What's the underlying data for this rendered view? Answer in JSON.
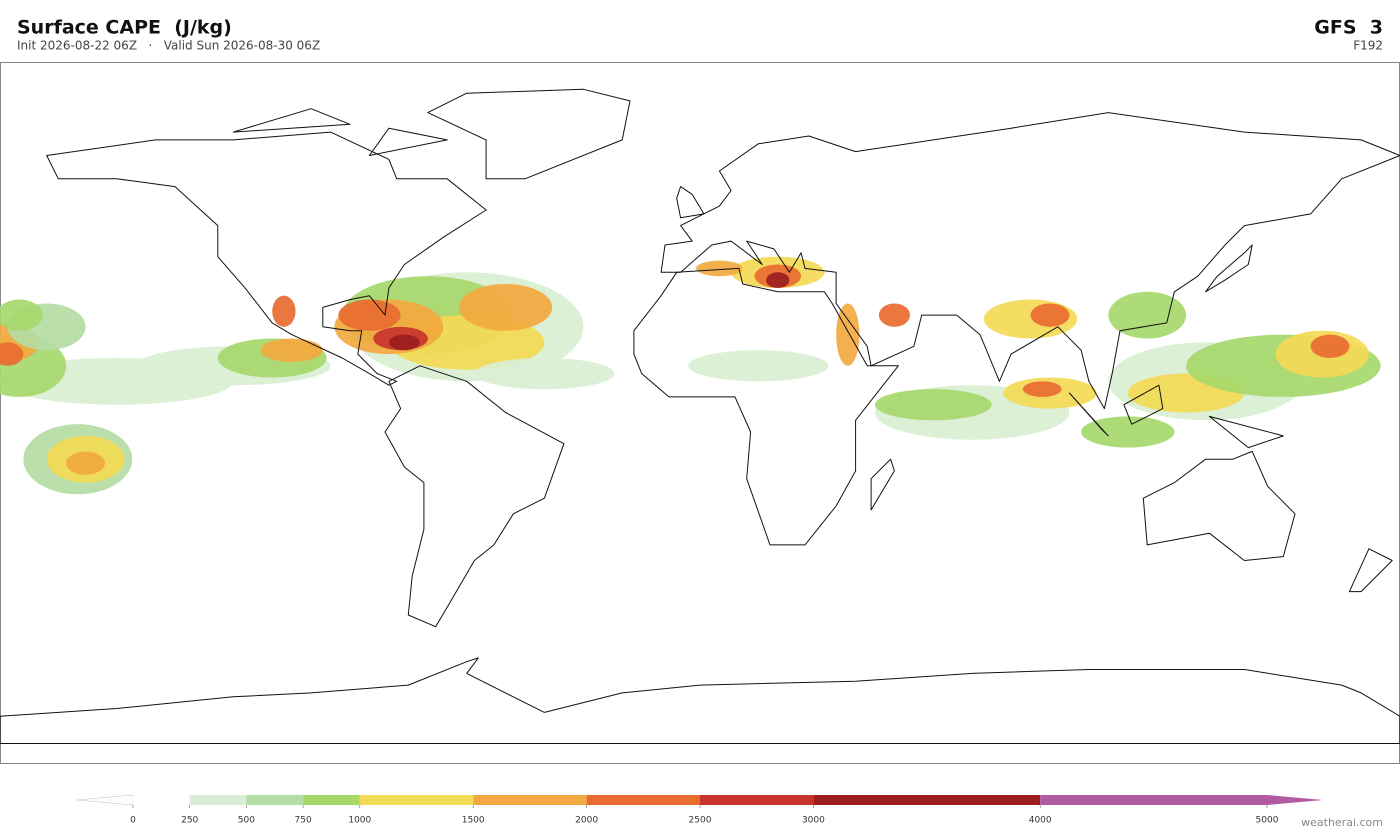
{
  "header": {
    "title": "Surface CAPE  (J/kg)",
    "subtitle": "Init 2026-08-22 06Z   ·   Valid Sun 2026-08-30 06Z",
    "model": "GFS  3",
    "forecast_hour": "F192"
  },
  "colorbar": {
    "ticks": [
      0,
      250,
      500,
      750,
      1000,
      1500,
      2000,
      2500,
      3000,
      4000,
      5000
    ],
    "colors": [
      "#ffffff",
      "#d9efd3",
      "#b4dca3",
      "#a6d86b",
      "#f3da55",
      "#f2a93f",
      "#e86b30",
      "#c8332b",
      "#9a1e1f",
      "#b05ba3"
    ],
    "under_color": "#ffffff",
    "over_color": "#b05ba3"
  },
  "footer": {
    "watermark": "weatherai.com"
  }
}
